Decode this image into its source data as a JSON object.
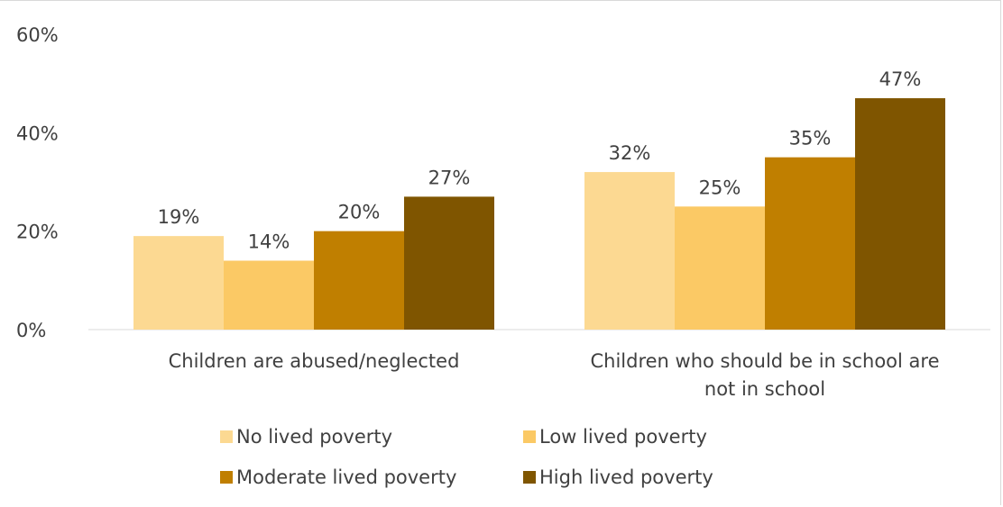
{
  "chart_data": {
    "type": "bar",
    "categories": [
      "Children are abused/neglected",
      "Children who should be in school are not in school"
    ],
    "category_lines": [
      [
        "Children are abused/neglected"
      ],
      [
        "Children who should be in school are",
        "not in school"
      ]
    ],
    "series": [
      {
        "name": "No lived poverty",
        "values": [
          19,
          32
        ],
        "labels": [
          "19%",
          "32%"
        ],
        "color": "#fcd992"
      },
      {
        "name": "Low lived poverty",
        "values": [
          14,
          25
        ],
        "labels": [
          "14%",
          "25%"
        ],
        "color": "#fbc965"
      },
      {
        "name": "Moderate lived poverty",
        "values": [
          20,
          35
        ],
        "labels": [
          "20%",
          "35%"
        ],
        "color": "#c07f00"
      },
      {
        "name": "High lived poverty",
        "values": [
          27,
          47
        ],
        "labels": [
          "27%",
          "47%"
        ],
        "color": "#7f5500"
      }
    ],
    "yticks": [
      "0%",
      "20%",
      "40%",
      "60%"
    ],
    "ylim": [
      0,
      60
    ],
    "gridlines": false,
    "legend_position": "bottom",
    "title": "",
    "xlabel": "",
    "ylabel": ""
  }
}
